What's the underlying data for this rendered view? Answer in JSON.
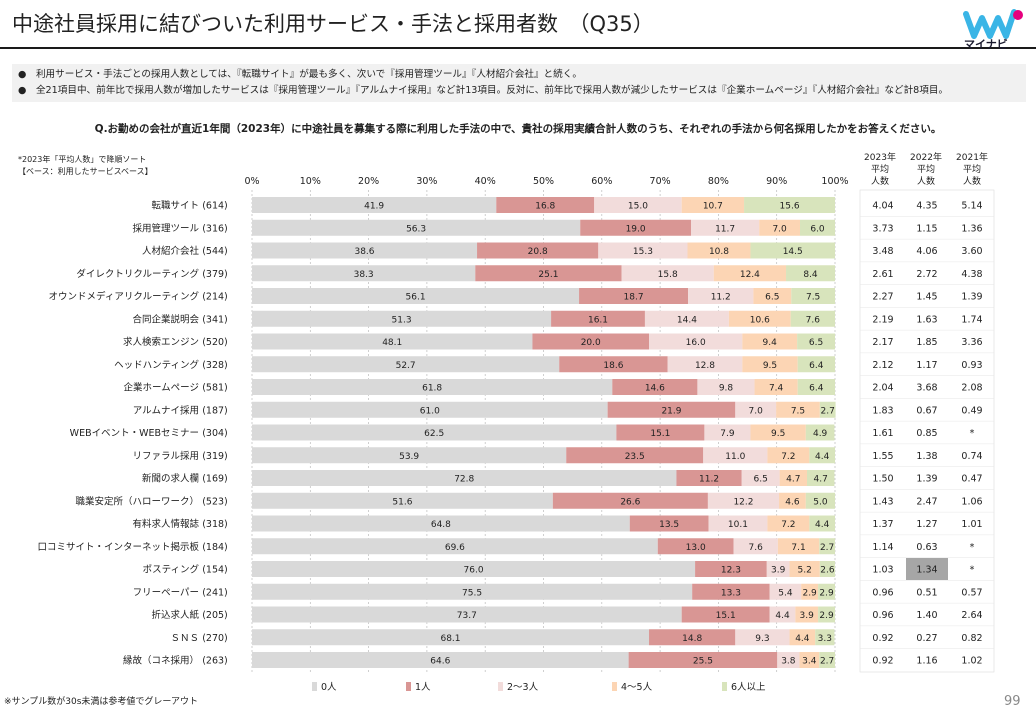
{
  "title": "中途社員採用に結びついた利用サービス・手法と採用者数　（Q35）",
  "logo": {
    "text": "マイナビ",
    "icon": "mynavi-logo-icon"
  },
  "notes": [
    "●　利用サービス・手法ごとの採用人数としては、『転職サイト』が最も多く、次いで『採用管理ツール』『人材紹介会社』と続く。",
    "●　全21項目中、前年比で採用人数が増加したサービスは『採用管理ツール』『アルムナイ採用』など計13項目。反対に、前年比で採用人数が減少したサービスは『企業ホームページ』『人材紹介会社』など計8項目。"
  ],
  "question": "Q.お勤めの会社が直近1年間（2023年）に中途社員を募集する際に利用した手法の中で、貴社の採用実績合計人数のうち、それぞれの手法から何名採用したかをお答えください。",
  "sort_note": [
    "*2023年「平均人数」で降順ソート",
    "【ベース：利用したサービスベース】"
  ],
  "avg_headers": [
    {
      "year": "2023年",
      "l2": "平均",
      "l3": "人数"
    },
    {
      "year": "2022年",
      "l2": "平均",
      "l3": "人数"
    },
    {
      "year": "2021年",
      "l2": "平均",
      "l3": "人数"
    }
  ],
  "footnote": "※サンプル数が30s未満は参考値でグレーアウト",
  "page_number": "99",
  "chart_data": {
    "type": "bar",
    "stacked": "100%",
    "orientation": "horizontal",
    "xlim": [
      0,
      100
    ],
    "xticks": [
      "0%",
      "10%",
      "20%",
      "30%",
      "40%",
      "50%",
      "60%",
      "70%",
      "80%",
      "90%",
      "100%"
    ],
    "legend_position": "bottom",
    "series": [
      {
        "name": "0人",
        "color": "#d9d9d9"
      },
      {
        "name": "1人",
        "color": "#d99694"
      },
      {
        "name": "2～3人",
        "color": "#f2dcdb"
      },
      {
        "name": "4～5人",
        "color": "#fcd5b4"
      },
      {
        "name": "6人以上",
        "color": "#d8e4bc"
      }
    ],
    "rows": [
      {
        "label": "転職サイト",
        "n": "(614)",
        "values": [
          41.9,
          16.8,
          15.0,
          10.7,
          15.6
        ],
        "avg": [
          "4.04",
          "4.35",
          "5.14"
        ]
      },
      {
        "label": "採用管理ツール",
        "n": "(316)",
        "values": [
          56.3,
          19.0,
          11.7,
          7.0,
          6.0
        ],
        "avg": [
          "3.73",
          "1.15",
          "1.36"
        ]
      },
      {
        "label": "人材紹介会社",
        "n": "(544)",
        "values": [
          38.6,
          20.8,
          15.3,
          10.8,
          14.5
        ],
        "avg": [
          "3.48",
          "4.06",
          "3.60"
        ]
      },
      {
        "label": "ダイレクトリクルーティング",
        "n": "(379)",
        "values": [
          38.3,
          25.1,
          15.8,
          12.4,
          8.4
        ],
        "avg": [
          "2.61",
          "2.72",
          "4.38"
        ]
      },
      {
        "label": "オウンドメディアリクルーティング",
        "n": "(214)",
        "values": [
          56.1,
          18.7,
          11.2,
          6.5,
          7.5
        ],
        "avg": [
          "2.27",
          "1.45",
          "1.39"
        ]
      },
      {
        "label": "合同企業説明会",
        "n": "(341)",
        "values": [
          51.3,
          16.1,
          14.4,
          10.6,
          7.6
        ],
        "avg": [
          "2.19",
          "1.63",
          "1.74"
        ]
      },
      {
        "label": "求人検索エンジン",
        "n": "(520)",
        "values": [
          48.1,
          20.0,
          16.0,
          9.4,
          6.5
        ],
        "avg": [
          "2.17",
          "1.85",
          "3.36"
        ]
      },
      {
        "label": "ヘッドハンティング",
        "n": "(328)",
        "values": [
          52.7,
          18.6,
          12.8,
          9.5,
          6.4
        ],
        "avg": [
          "2.12",
          "1.17",
          "0.93"
        ]
      },
      {
        "label": "企業ホームページ",
        "n": "(581)",
        "values": [
          61.8,
          14.6,
          9.8,
          7.4,
          6.4
        ],
        "avg": [
          "2.04",
          "3.68",
          "2.08"
        ]
      },
      {
        "label": "アルムナイ採用",
        "n": "(187)",
        "values": [
          61.0,
          21.9,
          7.0,
          7.5,
          2.7
        ],
        "avg": [
          "1.83",
          "0.67",
          "0.49"
        ]
      },
      {
        "label": "WEBイベント・WEBセミナー",
        "n": "(304)",
        "values": [
          62.5,
          15.1,
          7.9,
          9.5,
          4.9
        ],
        "avg": [
          "1.61",
          "0.85",
          "*"
        ]
      },
      {
        "label": "リファラル採用",
        "n": "(319)",
        "values": [
          53.9,
          23.5,
          11.0,
          7.2,
          4.4
        ],
        "avg": [
          "1.55",
          "1.38",
          "0.74"
        ]
      },
      {
        "label": "新聞の求人欄",
        "n": "(169)",
        "values": [
          72.8,
          11.2,
          6.5,
          4.7,
          4.7
        ],
        "avg": [
          "1.50",
          "1.39",
          "0.47"
        ]
      },
      {
        "label": "職業安定所（ハローワーク）",
        "n": "(523)",
        "values": [
          51.6,
          26.6,
          12.2,
          4.6,
          5.0
        ],
        "avg": [
          "1.43",
          "2.47",
          "1.06"
        ]
      },
      {
        "label": "有料求人情報誌",
        "n": "(318)",
        "values": [
          64.8,
          13.5,
          10.1,
          7.2,
          4.4
        ],
        "avg": [
          "1.37",
          "1.27",
          "1.01"
        ]
      },
      {
        "label": "口コミサイト・インターネット掲示板",
        "n": "(184)",
        "values": [
          69.6,
          13.0,
          7.6,
          7.1,
          2.7
        ],
        "avg": [
          "1.14",
          "0.63",
          "*"
        ]
      },
      {
        "label": "ポスティング",
        "n": "(154)",
        "values": [
          76.0,
          12.3,
          3.9,
          5.2,
          2.6
        ],
        "avg": [
          "1.03",
          "1.34",
          "*"
        ],
        "grey_cell": 1
      },
      {
        "label": "フリーペーパー",
        "n": "(241)",
        "values": [
          75.5,
          13.3,
          5.4,
          2.9,
          2.9
        ],
        "avg": [
          "0.96",
          "0.51",
          "0.57"
        ]
      },
      {
        "label": "折込求人紙",
        "n": "(205)",
        "values": [
          73.7,
          15.1,
          4.4,
          3.9,
          2.9
        ],
        "avg": [
          "0.96",
          "1.40",
          "2.64"
        ]
      },
      {
        "label": "ＳＮＳ",
        "n": "(270)",
        "values": [
          68.1,
          14.8,
          9.3,
          4.4,
          3.3
        ],
        "avg": [
          "0.92",
          "0.27",
          "0.82"
        ]
      },
      {
        "label": "縁故（コネ採用）",
        "n": "(263)",
        "values": [
          64.6,
          25.5,
          3.8,
          3.4,
          2.7
        ],
        "avg": [
          "0.92",
          "1.16",
          "1.02"
        ]
      }
    ]
  }
}
